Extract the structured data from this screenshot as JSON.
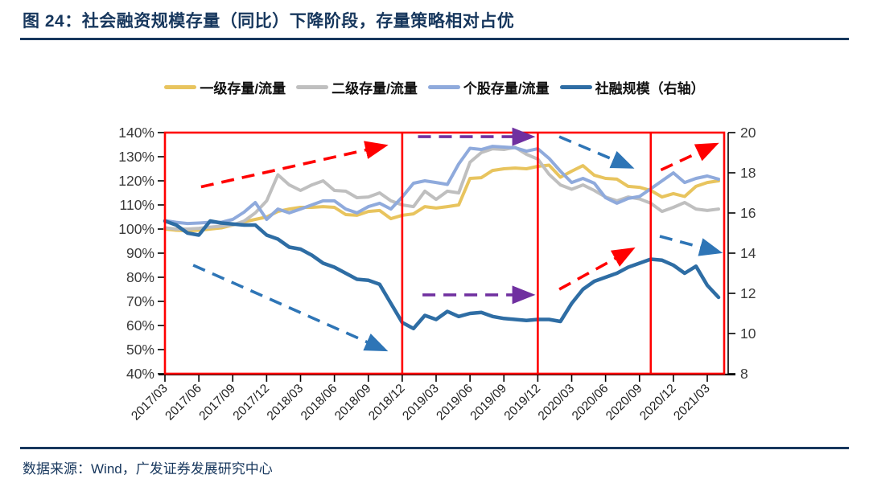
{
  "header": {
    "title": "图 24：社会融资规模存量（同比）下降阶段，存量策略相对占优"
  },
  "footer": {
    "source": "数据来源：Wind，广发证券发展研究中心"
  },
  "colors": {
    "primary_text": "#17375D",
    "red": "#FF0000",
    "purple": "#7030A0",
    "arrow_blue": "#2E75B6",
    "axis_line": "#000000"
  },
  "chart_data": {
    "type": "line",
    "title": "社会融资规模存量（同比）下降阶段，存量策略相对占优",
    "left_axis": {
      "unit": "%",
      "min": 40,
      "max": 140,
      "step": 10,
      "ticks": [
        "140%",
        "130%",
        "120%",
        "110%",
        "100%",
        "90%",
        "80%",
        "70%",
        "60%",
        "50%",
        "40%"
      ]
    },
    "right_axis": {
      "min": 8,
      "max": 20,
      "step": 2,
      "ticks": [
        20,
        18,
        16,
        14,
        12,
        10,
        8
      ]
    },
    "x_tick_labels": [
      "2017/03",
      "2017/06",
      "2017/09",
      "2017/12",
      "2018/03",
      "2018/06",
      "2018/09",
      "2018/12",
      "2019/03",
      "2019/06",
      "2019/09",
      "2019/12",
      "2020/03",
      "2020/06",
      "2020/09",
      "2020/12",
      "2021/03"
    ],
    "months": [
      "2017/03",
      "2017/04",
      "2017/05",
      "2017/06",
      "2017/07",
      "2017/08",
      "2017/09",
      "2017/10",
      "2017/11",
      "2017/12",
      "2018/01",
      "2018/02",
      "2018/03",
      "2018/04",
      "2018/05",
      "2018/06",
      "2018/07",
      "2018/08",
      "2018/09",
      "2018/10",
      "2018/11",
      "2018/12",
      "2019/01",
      "2019/02",
      "2019/03",
      "2019/04",
      "2019/05",
      "2019/06",
      "2019/07",
      "2019/08",
      "2019/09",
      "2019/10",
      "2019/11",
      "2019/12",
      "2020/01",
      "2020/02",
      "2020/03",
      "2020/04",
      "2020/05",
      "2020/06",
      "2020/07",
      "2020/08",
      "2020/09",
      "2020/10",
      "2020/11",
      "2020/12",
      "2021/01",
      "2021/02",
      "2021/03",
      "2021/04"
    ],
    "series": [
      {
        "key": "primary",
        "name": "一级存量/流量",
        "color": "#E8C45E",
        "axis": "left",
        "values": [
          100,
          99.5,
          99.3,
          99.5,
          100,
          100.5,
          101.7,
          103,
          104,
          105,
          107.3,
          108.3,
          109,
          109,
          109.3,
          109,
          106,
          105.7,
          107.3,
          107.7,
          104.3,
          105.7,
          106.3,
          109.3,
          108.7,
          109.3,
          110,
          121,
          121.3,
          124.3,
          125,
          125.3,
          125,
          126,
          126.5,
          121.5,
          124,
          126.3,
          122.3,
          121,
          120.7,
          117.7,
          117.3,
          116,
          113.3,
          114.7,
          113.5,
          117.7,
          119.3,
          120
        ]
      },
      {
        "key": "secondary",
        "name": "二级存量/流量",
        "color": "#BFBFBF",
        "axis": "left",
        "values": [
          100.5,
          100,
          100,
          100.3,
          100.8,
          101.2,
          101.7,
          103.3,
          106.7,
          111.7,
          122.5,
          118.3,
          116,
          118.3,
          120,
          116,
          115.7,
          113,
          113.3,
          115,
          111.7,
          110,
          109.3,
          115.7,
          112.3,
          115.7,
          115,
          127.7,
          131.7,
          133.3,
          133,
          133.9,
          131,
          129,
          122.7,
          118.3,
          116.5,
          118.3,
          116,
          113.3,
          111.7,
          113.3,
          112.5,
          110.7,
          107.3,
          109,
          111,
          108.3,
          107.7,
          108.3
        ]
      },
      {
        "key": "stocks",
        "name": "个股存量/流量",
        "color": "#8FAADC",
        "axis": "left",
        "values": [
          103.5,
          102.8,
          102.3,
          102.5,
          102.8,
          102.8,
          104,
          107,
          111,
          104,
          108.3,
          106.7,
          108.3,
          110,
          111.7,
          111.7,
          108.3,
          106.7,
          109.3,
          110.7,
          108.3,
          113.3,
          119,
          120,
          119.3,
          118.5,
          127,
          133.5,
          133,
          134.3,
          134,
          133.7,
          132.3,
          133.3,
          129.3,
          124,
          119.3,
          121,
          119,
          113,
          110.7,
          112.7,
          113.5,
          116.7,
          120,
          123.3,
          119.3,
          121,
          122,
          120.7
        ]
      },
      {
        "key": "tsf",
        "name": "社融规模（右轴）",
        "color": "#2E6DA4",
        "axis": "right",
        "values": [
          15.6,
          15.4,
          15.0,
          14.9,
          15.6,
          15.5,
          15.45,
          15.4,
          15.4,
          14.9,
          14.7,
          14.3,
          14.2,
          13.9,
          13.5,
          13.3,
          13.0,
          12.7,
          12.65,
          12.45,
          11.5,
          10.55,
          10.25,
          10.9,
          10.7,
          11.1,
          10.85,
          11.0,
          11.05,
          10.85,
          10.75,
          10.7,
          10.65,
          10.7,
          10.7,
          10.6,
          11.5,
          12.2,
          12.6,
          12.8,
          13.0,
          13.3,
          13.5,
          13.7,
          13.65,
          13.4,
          13.0,
          13.35,
          12.4,
          11.8
        ]
      }
    ],
    "phase_dividers": {
      "color": "#FF0000",
      "at_months": [
        "2018/12",
        "2019/12",
        "2020/10"
      ]
    },
    "border_color": "#FF0000",
    "annotations": [
      {
        "kind": "arrow",
        "color": "red",
        "from": [
          3.2,
          117.5
        ],
        "to": [
          19.4,
          134.5
        ]
      },
      {
        "kind": "arrow",
        "color": "blue",
        "from": [
          2.5,
          85
        ],
        "to": [
          19.4,
          50
        ]
      },
      {
        "kind": "arrow",
        "color": "purple",
        "from": [
          22.4,
          138.3
        ],
        "to": [
          32.4,
          138.3
        ]
      },
      {
        "kind": "arrow",
        "color": "purple",
        "from": [
          22.8,
          72.7
        ],
        "to": [
          32.4,
          72.7
        ]
      },
      {
        "kind": "arrow",
        "color": "blue",
        "from": [
          34.9,
          138.3
        ],
        "to": [
          41.2,
          125.8
        ]
      },
      {
        "kind": "arrow",
        "color": "red",
        "from": [
          34.9,
          75
        ],
        "to": [
          41.3,
          91.5
        ]
      },
      {
        "kind": "arrow",
        "color": "red",
        "from": [
          43.9,
          124.5
        ],
        "to": [
          48.7,
          135
        ]
      },
      {
        "kind": "arrow",
        "color": "blue",
        "from": [
          43.8,
          97
        ],
        "to": [
          49.0,
          90.5
        ]
      }
    ],
    "legend_position": "top-center",
    "grid": false
  }
}
